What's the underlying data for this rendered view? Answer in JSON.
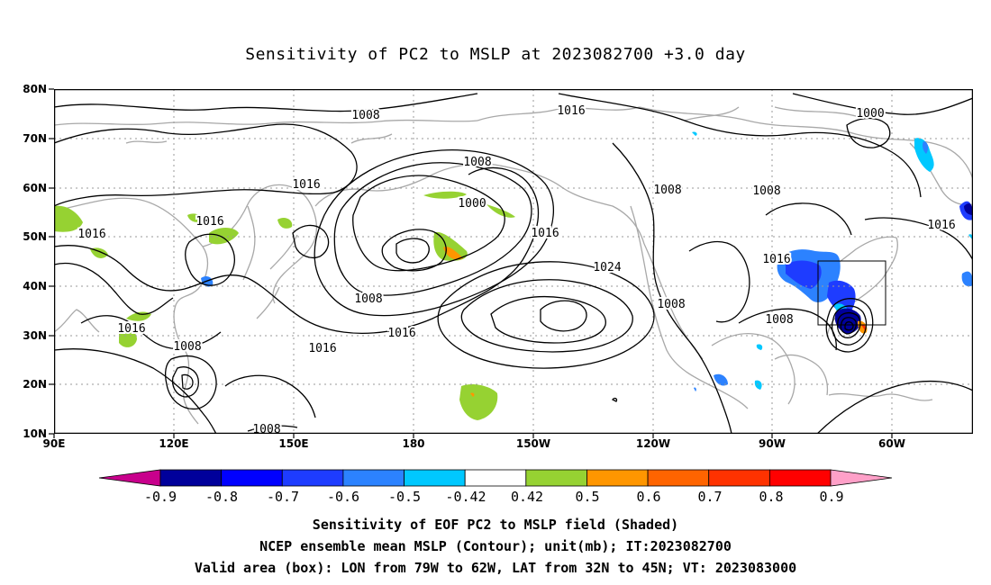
{
  "title": "Sensitivity of PC2 to MSLP at 2023082700 +3.0 day",
  "map": {
    "lat_labels": [
      "80N",
      "70N",
      "60N",
      "50N",
      "40N",
      "30N",
      "20N",
      "10N"
    ],
    "lon_labels": [
      "90E",
      "120E",
      "150E",
      "180",
      "150W",
      "120W",
      "90W",
      "60W"
    ],
    "contour_labels": [
      "1008",
      "1016",
      "1008",
      "1000",
      "1000",
      "1016",
      "1016",
      "1016",
      "1008",
      "1008",
      "1016",
      "1008",
      "1016",
      "1016",
      "1024",
      "1008",
      "1016",
      "1008",
      "1008",
      "1016",
      "1016",
      "1008"
    ],
    "box": {
      "lon_from": "79W",
      "lon_to": "62W",
      "lat_from": "32N",
      "lat_to": "45N"
    },
    "colors": {
      "land": "#a8a8a8",
      "contour": "#000000",
      "grid": "#9a9a9a"
    }
  },
  "colorbar": {
    "labels": [
      "-0.9",
      "-0.8",
      "-0.7",
      "-0.6",
      "-0.5",
      "-0.42",
      "0.42",
      "0.5",
      "0.6",
      "0.7",
      "0.8",
      "0.9"
    ],
    "colors": [
      "#c8008c",
      "#00009b",
      "#0000ff",
      "#1e3cff",
      "#2c82ff",
      "#00c8ff",
      "#ffffff",
      "#96d232",
      "#ff9600",
      "#ff6400",
      "#ff3200",
      "#ff0000",
      "#ffa0c8"
    ]
  },
  "caption": {
    "line1": "Sensitivity of EOF PC2 to MSLP field (Shaded)",
    "line2": "NCEP ensemble mean MSLP (Contour); unit(mb); IT:2023082700",
    "line3": "Valid area (box): LON from 79W to 62W, LAT from 32N to 45N; VT: 2023083000"
  }
}
